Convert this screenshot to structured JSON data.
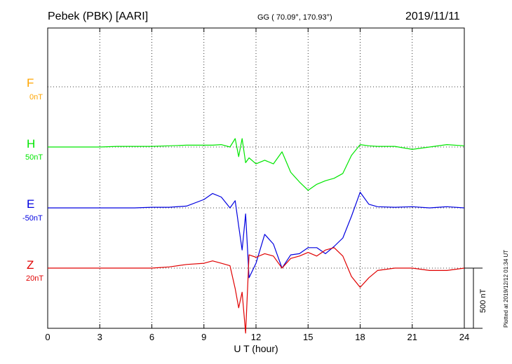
{
  "header": {
    "station": "Pebek (PBK)  [AARI]",
    "coords": "GG ( 70.09°, 170.93°)",
    "date": "2019/11/11"
  },
  "plotted_note": "Plotted at 2019/12/12 01:34  UT",
  "scale_label": "500 nT",
  "colors": {
    "F": "#ffa500",
    "H": "#00e600",
    "E": "#0000e0",
    "Z": "#e00000"
  },
  "chart_data": {
    "type": "line",
    "xlabel": "U T (hour)",
    "xlim": [
      0,
      24
    ],
    "x_ticks": [
      "0",
      "3",
      "6",
      "9",
      "12",
      "15",
      "18",
      "21",
      "24"
    ],
    "grid": true,
    "y_scale_bar_nT": 500,
    "series": [
      {
        "name": "F",
        "baseline_label": "0nT",
        "color": "#ffa500",
        "x": [],
        "y": []
      },
      {
        "name": "H",
        "baseline_label": "50nT",
        "color": "#00e600",
        "x": [
          0,
          1,
          2,
          3,
          4,
          5,
          6,
          7,
          8,
          9,
          9.5,
          10,
          10.5,
          10.8,
          11,
          11.2,
          11.4,
          11.6,
          12,
          12.5,
          13,
          13.5,
          14,
          14.5,
          15,
          15.5,
          16,
          16.5,
          17,
          17.5,
          18,
          18.5,
          19,
          20,
          21,
          22,
          23,
          24
        ],
        "y": [
          0,
          0,
          0,
          0,
          5,
          5,
          5,
          10,
          15,
          15,
          15,
          20,
          0,
          70,
          -80,
          70,
          -130,
          -90,
          -140,
          -110,
          -140,
          -40,
          -210,
          -290,
          -360,
          -310,
          -280,
          -260,
          -220,
          -70,
          20,
          10,
          5,
          5,
          -20,
          0,
          20,
          10
        ]
      },
      {
        "name": "E",
        "baseline_label": "-50nT",
        "color": "#0000e0",
        "x": [
          0,
          1,
          2,
          3,
          4,
          5,
          6,
          7,
          8,
          9,
          9.5,
          10,
          10.5,
          10.8,
          11,
          11.2,
          11.4,
          11.6,
          12,
          12.5,
          13,
          13.5,
          14,
          14.5,
          15,
          15.5,
          16,
          16.5,
          17,
          17.5,
          18,
          18.5,
          19,
          20,
          21,
          22,
          23,
          24
        ],
        "y": [
          0,
          0,
          0,
          0,
          0,
          0,
          5,
          5,
          15,
          70,
          120,
          90,
          0,
          60,
          -150,
          -350,
          -50,
          -580,
          -460,
          -220,
          -300,
          -500,
          -390,
          -380,
          -330,
          -330,
          -380,
          -320,
          -250,
          -70,
          130,
          30,
          10,
          5,
          10,
          0,
          10,
          0
        ]
      },
      {
        "name": "Z",
        "baseline_label": "20nT",
        "color": "#e00000",
        "x": [
          0,
          1,
          2,
          3,
          4,
          5,
          6,
          7,
          8,
          9,
          9.5,
          10,
          10.5,
          10.8,
          11,
          11.2,
          11.4,
          11.6,
          12,
          12.5,
          13,
          13.5,
          14,
          14.5,
          15,
          15.5,
          16,
          16.5,
          17,
          17.5,
          18,
          18.5,
          19,
          20,
          21,
          22,
          23,
          24
        ],
        "y": [
          0,
          0,
          0,
          0,
          0,
          0,
          0,
          10,
          30,
          40,
          60,
          40,
          20,
          -170,
          -330,
          -200,
          -540,
          110,
          90,
          120,
          100,
          0,
          80,
          100,
          130,
          100,
          150,
          170,
          100,
          -70,
          -160,
          -80,
          -20,
          0,
          0,
          -20,
          -20,
          0
        ]
      }
    ]
  }
}
